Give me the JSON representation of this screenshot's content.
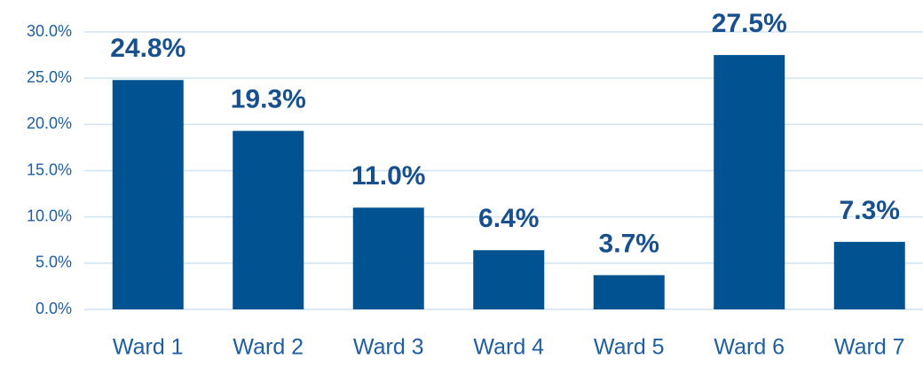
{
  "chart_data": {
    "type": "bar",
    "categories": [
      "Ward 1",
      "Ward 2",
      "Ward 3",
      "Ward 4",
      "Ward 5",
      "Ward 6",
      "Ward 7"
    ],
    "values": [
      24.8,
      19.3,
      11.0,
      6.4,
      3.7,
      27.5,
      7.3
    ],
    "value_labels": [
      "24.8%",
      "19.3%",
      "11.0%",
      "6.4%",
      "3.7%",
      "27.5%",
      "7.3%"
    ],
    "color": "#005291",
    "ylim": [
      0,
      30
    ],
    "yticks": [
      {
        "value": 0,
        "label": "0.0%"
      },
      {
        "value": 5,
        "label": "5.0%"
      },
      {
        "value": 10,
        "label": "10.0%"
      },
      {
        "value": 15,
        "label": "15.0%"
      },
      {
        "value": 20,
        "label": "20.0%"
      },
      {
        "value": 25,
        "label": "25.0%"
      },
      {
        "value": 30,
        "label": "30.0%"
      }
    ],
    "grid": true
  }
}
